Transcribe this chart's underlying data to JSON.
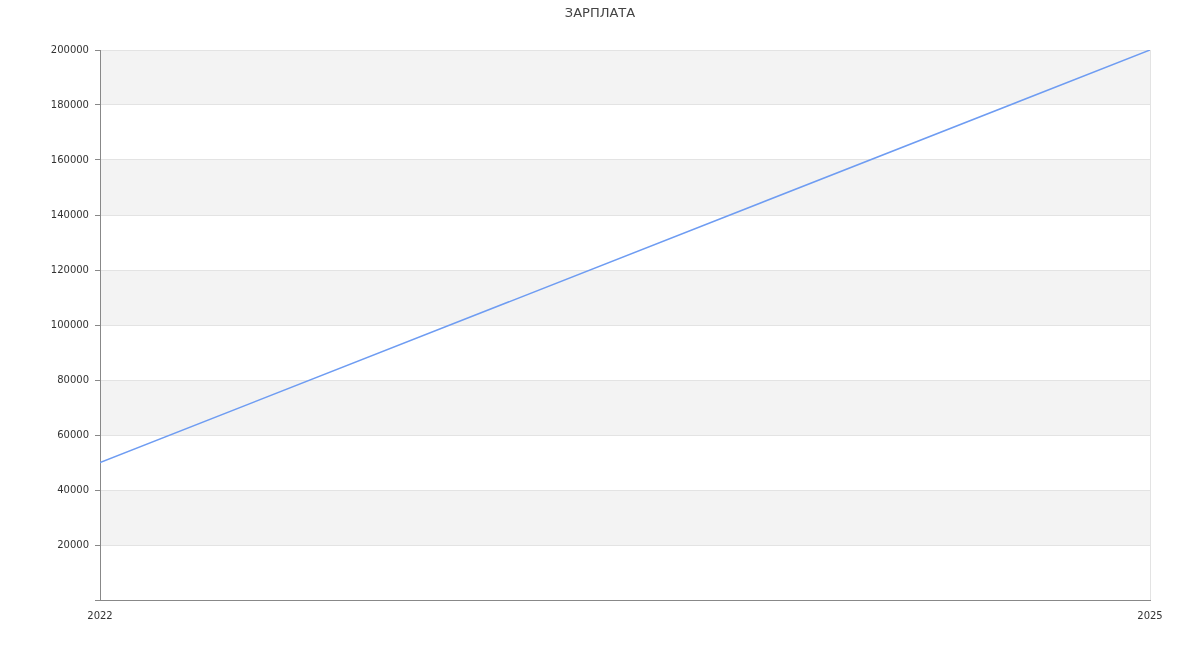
{
  "chart_data": {
    "type": "line",
    "title": "ЗАРПЛАТА",
    "x": [
      "2022",
      "2025"
    ],
    "values": [
      50000,
      200000
    ],
    "color": "#6e9cf2",
    "xlim": [
      "2022",
      "2025"
    ],
    "xticks": [
      "2022",
      "2025"
    ],
    "ylim": [
      0,
      200000
    ],
    "yticks": [
      {
        "value": 0,
        "label": null
      },
      20000,
      40000,
      60000,
      80000,
      100000,
      120000,
      140000,
      160000,
      180000,
      200000
    ],
    "grid": "y"
  }
}
